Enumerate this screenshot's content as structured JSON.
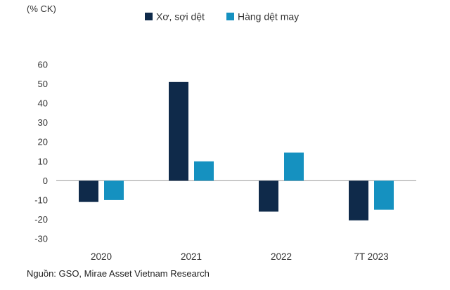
{
  "colors": {
    "series1": "#0f2a4a",
    "series2": "#1591c0",
    "axis": "#9a9a9a"
  },
  "unit_label": "(% CK)",
  "source_note": "Nguồn: GSO, Mirae Asset Vietnam Research",
  "chart_data": {
    "type": "bar",
    "categories": [
      "2020",
      "2021",
      "2022",
      "7T 2023"
    ],
    "series": [
      {
        "name": "Xơ, sợi dệt",
        "values": [
          -11,
          51,
          -16,
          -20.5
        ]
      },
      {
        "name": "Hàng dệt may",
        "values": [
          -10,
          10,
          14.5,
          -15
        ]
      }
    ],
    "y_ticks": [
      "60",
      "50",
      "40",
      "30",
      "20",
      "10",
      "0",
      "-10",
      "-20",
      "-30"
    ],
    "ylim": [
      -30,
      60
    ],
    "grid": false,
    "legend_position": "top"
  }
}
